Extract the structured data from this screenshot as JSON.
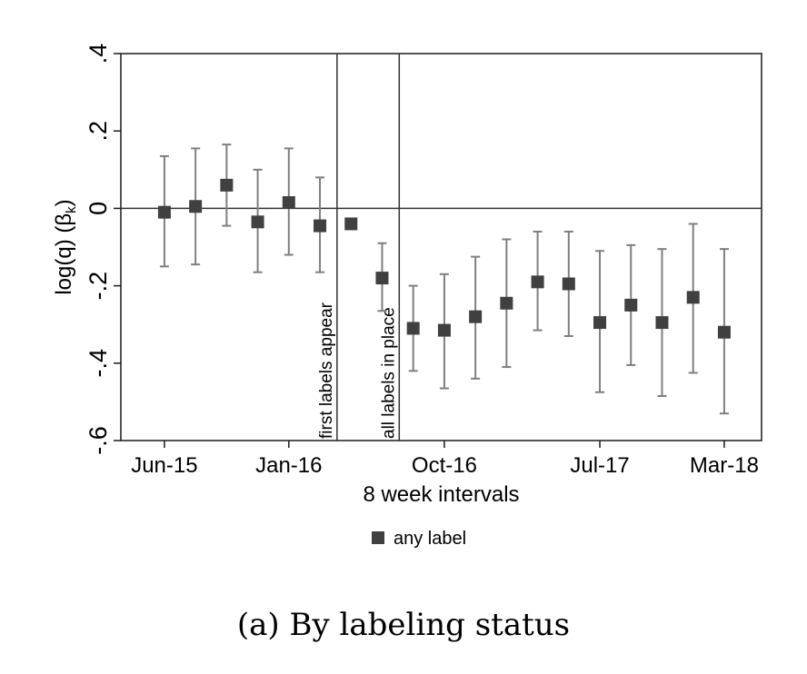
{
  "chart_data": {
    "type": "scatter",
    "xlabel": "8 week intervals",
    "ylabel_base": "log(q) (β",
    "ylabel_sub": "k",
    "ylabel_close": ")",
    "ylim": [
      -0.6,
      0.4
    ],
    "yticks": [
      {
        "label": "-.6",
        "value": -0.6
      },
      {
        "label": "-.4",
        "value": -0.4
      },
      {
        "label": "-.2",
        "value": -0.2
      },
      {
        "label": "0",
        "value": 0
      },
      {
        "label": ".2",
        "value": 0.2
      },
      {
        "label": ".4",
        "value": 0.4
      }
    ],
    "xticks": [
      {
        "label": "Jun-15",
        "interval": 1
      },
      {
        "label": "Jan-16",
        "interval": 5
      },
      {
        "label": "Oct-16",
        "interval": 10
      },
      {
        "label": "Jul-17",
        "interval": 15
      },
      {
        "label": "Mar-18",
        "interval": 19
      }
    ],
    "xlim": [
      -0.4,
      20.2
    ],
    "grid": false,
    "legend_position": "bottom",
    "series": [
      {
        "name": "any label",
        "color": "#404040",
        "ci_color": "#7f7f7f",
        "points": [
          {
            "x": 1,
            "y": -0.01,
            "lo": -0.15,
            "hi": 0.135
          },
          {
            "x": 2,
            "y": 0.005,
            "lo": -0.145,
            "hi": 0.155
          },
          {
            "x": 3,
            "y": 0.06,
            "lo": -0.045,
            "hi": 0.165
          },
          {
            "x": 4,
            "y": -0.035,
            "lo": -0.165,
            "hi": 0.1
          },
          {
            "x": 5,
            "y": 0.015,
            "lo": -0.12,
            "hi": 0.155
          },
          {
            "x": 6,
            "y": -0.045,
            "lo": -0.165,
            "hi": 0.08
          },
          {
            "x": 7,
            "y": -0.04,
            "lo": null,
            "hi": null
          },
          {
            "x": 8,
            "y": -0.18,
            "lo": -0.265,
            "hi": -0.09
          },
          {
            "x": 9,
            "y": -0.31,
            "lo": -0.42,
            "hi": -0.2
          },
          {
            "x": 10,
            "y": -0.315,
            "lo": -0.465,
            "hi": -0.17
          },
          {
            "x": 11,
            "y": -0.28,
            "lo": -0.44,
            "hi": -0.125
          },
          {
            "x": 12,
            "y": -0.245,
            "lo": -0.41,
            "hi": -0.08
          },
          {
            "x": 13,
            "y": -0.19,
            "lo": -0.315,
            "hi": -0.06
          },
          {
            "x": 14,
            "y": -0.195,
            "lo": -0.33,
            "hi": -0.06
          },
          {
            "x": 15,
            "y": -0.295,
            "lo": -0.475,
            "hi": -0.11
          },
          {
            "x": 16,
            "y": -0.25,
            "lo": -0.405,
            "hi": -0.095
          },
          {
            "x": 17,
            "y": -0.295,
            "lo": -0.485,
            "hi": -0.105
          },
          {
            "x": 18,
            "y": -0.23,
            "lo": -0.425,
            "hi": -0.04
          },
          {
            "x": 19,
            "y": -0.32,
            "lo": -0.53,
            "hi": -0.105
          }
        ]
      }
    ],
    "vlines": [
      {
        "x": 6.55,
        "label": "first labels appear"
      },
      {
        "x": 8.55,
        "label": "all labels in place"
      }
    ],
    "hline": 0
  },
  "caption": "(a) By labeling status"
}
